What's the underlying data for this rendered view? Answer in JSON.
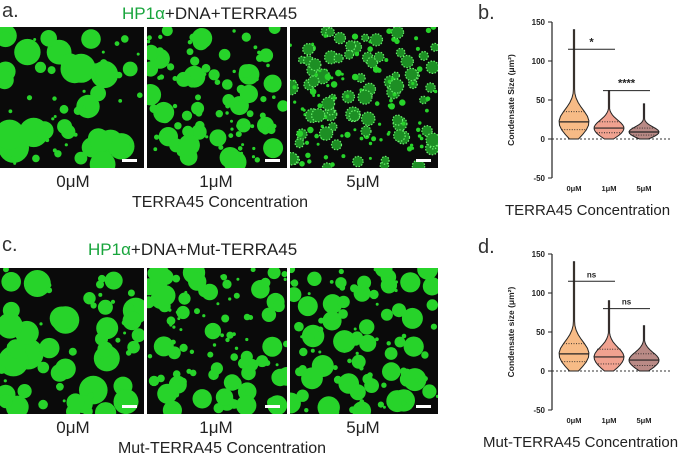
{
  "panels": {
    "a": {
      "letter": "a.",
      "title_hp": "HP1α",
      "title_rest": "+DNA+TERRA45",
      "concentrations": [
        "0μM",
        "1μM",
        "5μM"
      ],
      "caption": "TERRA45 Concentration"
    },
    "c": {
      "letter": "c.",
      "title_hp": "HP1α",
      "title_rest": "+DNA+Mut-TERRA45",
      "concentrations": [
        "0μM",
        "1μM",
        "5μM"
      ],
      "caption": "Mut-TERRA45 Concentration"
    },
    "b": {
      "letter": "b.",
      "caption": "TERRA45 Concentration"
    },
    "d": {
      "letter": "d.",
      "caption": "Mut-TERRA45 Concentration"
    }
  },
  "colors": {
    "green": "#18a53c",
    "droplet": "#27d32a",
    "violin": [
      "#f7bb86",
      "#f0a290",
      "#b98a86"
    ]
  },
  "chart_data": [
    {
      "id": "b",
      "type": "violin",
      "ylabel": "Condensate Size (μm²)",
      "xlabel": "TERRA45 Concentration",
      "ylim": [
        -50,
        150
      ],
      "yticks": [
        -50,
        0,
        50,
        100,
        150
      ],
      "categories": [
        "0μM",
        "1μM",
        "5μM"
      ],
      "series": [
        {
          "name": "0μM",
          "min": 0,
          "q1": 12,
          "median": 22,
          "q3": 35,
          "max": 140
        },
        {
          "name": "1μM",
          "min": 0,
          "q1": 8,
          "median": 14,
          "q3": 22,
          "max": 62
        },
        {
          "name": "5μM",
          "min": 0,
          "q1": 5,
          "median": 9,
          "q3": 14,
          "max": 45
        }
      ],
      "significance": [
        {
          "pair": [
            "0μM",
            "1μM"
          ],
          "label": "*",
          "y": 115
        },
        {
          "pair": [
            "1μM",
            "5μM"
          ],
          "label": "****",
          "y": 62
        }
      ]
    },
    {
      "id": "d",
      "type": "violin",
      "ylabel": "Condensate size (μm²)",
      "xlabel": "Mut-TERRA45 Concentration",
      "ylim": [
        -50,
        150
      ],
      "yticks": [
        -50,
        0,
        50,
        100,
        150
      ],
      "categories": [
        "0μM",
        "1μM",
        "5μM"
      ],
      "series": [
        {
          "name": "0μM",
          "min": 0,
          "q1": 12,
          "median": 22,
          "q3": 35,
          "max": 140
        },
        {
          "name": "1μM",
          "min": 0,
          "q1": 9,
          "median": 18,
          "q3": 28,
          "max": 90
        },
        {
          "name": "5μM",
          "min": 0,
          "q1": 7,
          "median": 14,
          "q3": 22,
          "max": 58
        }
      ],
      "significance": [
        {
          "pair": [
            "0μM",
            "1μM"
          ],
          "label": "ns",
          "y": 115
        },
        {
          "pair": [
            "1μM",
            "5μM"
          ],
          "label": "ns",
          "y": 80
        }
      ]
    }
  ]
}
